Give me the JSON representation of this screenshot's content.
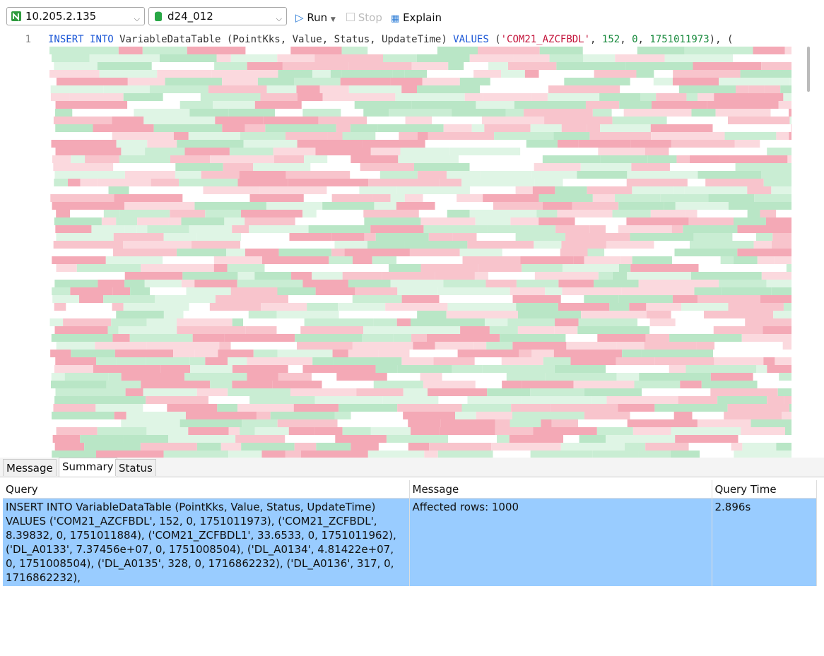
{
  "toolbar": {
    "connection": "10.205.2.135",
    "database": "d24_012",
    "run": "Run",
    "stop": "Stop",
    "explain": "Explain"
  },
  "editor": {
    "line_numbers": [
      "1"
    ],
    "lines": [
      "INSERT INTO VariableDataTable (PointKks, Value, Status, UpdateTime) VALUES ('COM21_AZCFBDL', 152, 0, 1751011973), ("
    ]
  },
  "tabs": [
    "Message",
    "Summary",
    "Status"
  ],
  "table": {
    "columns": [
      "Query",
      "Message",
      "Query Time"
    ],
    "rows": [
      [
        "INSERT INTO VariableDataTable (PointKks, Value, Status, UpdateTime) VALUES ('COM21_AZCFBDL', 152, 0, 1751011973), ('COM21_ZCFBDL', 8.39832, 0, 1751011884), ('COM21_ZCFBDL1', 33.6533, 0, 1751011962), ('DL_A0133', 7.37456e+07, 0, 1751008504), ('DL_A0134', 4.81422e+07, 0, 1751008504), ('DL_A0135', 328, 0, 1716862232), ('DL_A0136', 317, 0, 1716862232),",
        "Affected rows: 1000",
        "2.896s"
      ]
    ]
  }
}
